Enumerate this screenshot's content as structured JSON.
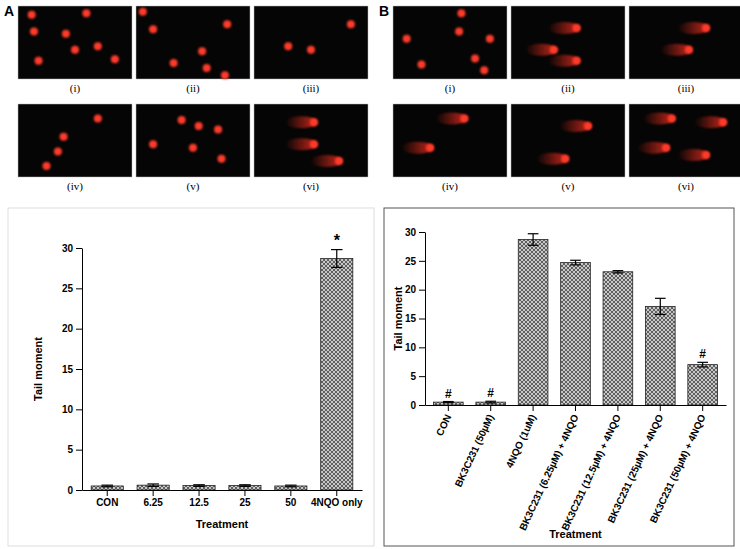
{
  "panels": [
    {
      "label": "A",
      "images": [
        "(i)",
        "(ii)",
        "(iii)",
        "(iv)",
        "(v)",
        "(vi)"
      ]
    },
    {
      "label": "B",
      "images": [
        "(i)",
        "(ii)",
        "(iii)",
        "(iv)",
        "(v)",
        "(vi)"
      ]
    }
  ],
  "chart_data": [
    {
      "type": "bar",
      "categories": [
        "CON",
        "6.25",
        "12.5",
        "25",
        "50",
        "4NQO only"
      ],
      "values": [
        0.5,
        0.6,
        0.55,
        0.55,
        0.5,
        28.7
      ],
      "errors": [
        0.1,
        0.15,
        0.1,
        0.1,
        0.1,
        1.1
      ],
      "x_label": "Treatment",
      "y_label": "Tail moment",
      "color": "#c8c8c8",
      "ylim": [
        0,
        30
      ],
      "yticks": [
        0,
        5,
        10,
        15,
        20,
        25,
        30
      ],
      "annotations": [
        {
          "text": "*",
          "category": "4NQO only"
        }
      ]
    },
    {
      "type": "bar",
      "categories": [
        "CON",
        "BK3C231 (50µM)",
        "4NQO (1uM)",
        "BK3C231 (6.25µM) + 4NQO",
        "BK3C231 (12.5µM) + 4NQO",
        "BK3C231 (25µM) + 4NQO",
        "BK3C231 (50µM) + 4NQO"
      ],
      "values": [
        0.5,
        0.5,
        28.7,
        24.7,
        23.1,
        17.1,
        7.0
      ],
      "errors": [
        0.1,
        0.15,
        1.0,
        0.4,
        0.2,
        1.4,
        0.4
      ],
      "x_label": "Treatment",
      "y_label": "Tail moment",
      "color": "#c8c8c8",
      "ylim": [
        0,
        30
      ],
      "yticks": [
        0,
        5,
        10,
        15,
        20,
        25,
        30
      ],
      "annotations": [
        {
          "text": "#",
          "category": "CON"
        },
        {
          "text": "#",
          "category": "BK3C231 (50µM)"
        },
        {
          "text": "#",
          "category": "BK3C231 (50µM) + 4NQO"
        }
      ]
    }
  ]
}
